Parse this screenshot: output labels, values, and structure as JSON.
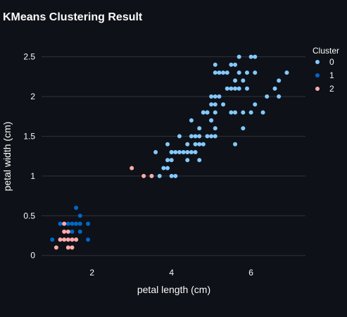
{
  "chart_data": {
    "type": "scatter",
    "title": "KMeans Clustering Result",
    "xlabel": "petal length (cm)",
    "ylabel": "petal width (cm)",
    "xlim": [
      0.73,
      7.37
    ],
    "ylim": [
      -0.1,
      2.7
    ],
    "xticks": [
      2,
      4,
      6
    ],
    "yticks": [
      0,
      0.5,
      1,
      1.5,
      2,
      2.5
    ],
    "grid": true,
    "legend": {
      "title": "Cluster",
      "placement": "top-right"
    },
    "series": [
      {
        "name": "0",
        "color": "#83c9ff",
        "points": [
          [
            3.6,
            1.3
          ],
          [
            3.7,
            1.0
          ],
          [
            3.8,
            1.1
          ],
          [
            3.9,
            1.1
          ],
          [
            3.9,
            1.2
          ],
          [
            3.9,
            1.4
          ],
          [
            4.0,
            1.0
          ],
          [
            4.0,
            1.2
          ],
          [
            4.0,
            1.3
          ],
          [
            4.1,
            1.0
          ],
          [
            4.1,
            1.3
          ],
          [
            4.2,
            1.3
          ],
          [
            4.2,
            1.5
          ],
          [
            4.3,
            1.3
          ],
          [
            4.4,
            1.2
          ],
          [
            4.4,
            1.3
          ],
          [
            4.4,
            1.4
          ],
          [
            4.5,
            1.3
          ],
          [
            4.5,
            1.5
          ],
          [
            4.5,
            1.7
          ],
          [
            4.6,
            1.3
          ],
          [
            4.6,
            1.4
          ],
          [
            4.6,
            1.5
          ],
          [
            4.7,
            1.2
          ],
          [
            4.7,
            1.4
          ],
          [
            4.7,
            1.5
          ],
          [
            4.7,
            1.6
          ],
          [
            4.8,
            1.4
          ],
          [
            4.8,
            1.8
          ],
          [
            4.9,
            1.5
          ],
          [
            4.9,
            1.8
          ],
          [
            5.0,
            1.5
          ],
          [
            5.0,
            1.7
          ],
          [
            5.0,
            1.9
          ],
          [
            5.0,
            2.0
          ],
          [
            4.9,
            1.8
          ],
          [
            4.8,
            1.8
          ],
          [
            5.1,
            1.5
          ],
          [
            5.1,
            1.6
          ],
          [
            5.1,
            1.8
          ],
          [
            5.1,
            1.9
          ],
          [
            5.1,
            2.0
          ],
          [
            5.1,
            2.3
          ],
          [
            5.1,
            2.4
          ],
          [
            5.2,
            2.0
          ],
          [
            5.2,
            2.3
          ],
          [
            5.3,
            1.9
          ],
          [
            5.3,
            2.3
          ],
          [
            5.4,
            2.1
          ],
          [
            5.4,
            2.3
          ],
          [
            5.5,
            1.8
          ],
          [
            5.5,
            2.1
          ],
          [
            5.5,
            2.4
          ],
          [
            5.6,
            1.4
          ],
          [
            5.6,
            1.8
          ],
          [
            5.6,
            2.1
          ],
          [
            5.6,
            2.2
          ],
          [
            5.6,
            2.4
          ],
          [
            5.7,
            2.1
          ],
          [
            5.7,
            2.3
          ],
          [
            5.7,
            2.5
          ],
          [
            5.8,
            1.6
          ],
          [
            5.8,
            1.8
          ],
          [
            5.8,
            2.2
          ],
          [
            5.9,
            2.1
          ],
          [
            5.9,
            2.3
          ],
          [
            6.0,
            1.8
          ],
          [
            6.0,
            2.5
          ],
          [
            6.1,
            1.9
          ],
          [
            6.1,
            2.3
          ],
          [
            6.1,
            2.5
          ],
          [
            6.3,
            1.8
          ],
          [
            6.4,
            2.0
          ],
          [
            6.6,
            2.1
          ],
          [
            6.7,
            2.0
          ],
          [
            6.7,
            2.2
          ],
          [
            6.9,
            2.3
          ],
          [
            5.0,
            1.7
          ],
          [
            4.0,
            1.3
          ]
        ]
      },
      {
        "name": "1",
        "color": "#0068c9",
        "points": [
          [
            1.0,
            0.2
          ],
          [
            1.2,
            0.4
          ],
          [
            1.4,
            0.4
          ],
          [
            1.5,
            0.4
          ],
          [
            1.6,
            0.4
          ],
          [
            1.6,
            0.6
          ],
          [
            1.7,
            0.4
          ],
          [
            1.7,
            0.5
          ],
          [
            1.9,
            0.4
          ],
          [
            1.9,
            0.2
          ],
          [
            1.5,
            0.3
          ],
          [
            1.7,
            0.3
          ],
          [
            1.6,
            0.2
          ]
        ]
      },
      {
        "name": "2",
        "color": "#ffabab",
        "points": [
          [
            1.1,
            0.1
          ],
          [
            1.2,
            0.2
          ],
          [
            1.3,
            0.2
          ],
          [
            1.3,
            0.3
          ],
          [
            1.4,
            0.1
          ],
          [
            1.4,
            0.2
          ],
          [
            1.4,
            0.3
          ],
          [
            1.5,
            0.1
          ],
          [
            1.5,
            0.2
          ],
          [
            1.6,
            0.2
          ],
          [
            1.3,
            0.4
          ],
          [
            3.0,
            1.1
          ],
          [
            3.3,
            1.0
          ],
          [
            3.5,
            1.0
          ]
        ]
      }
    ]
  }
}
